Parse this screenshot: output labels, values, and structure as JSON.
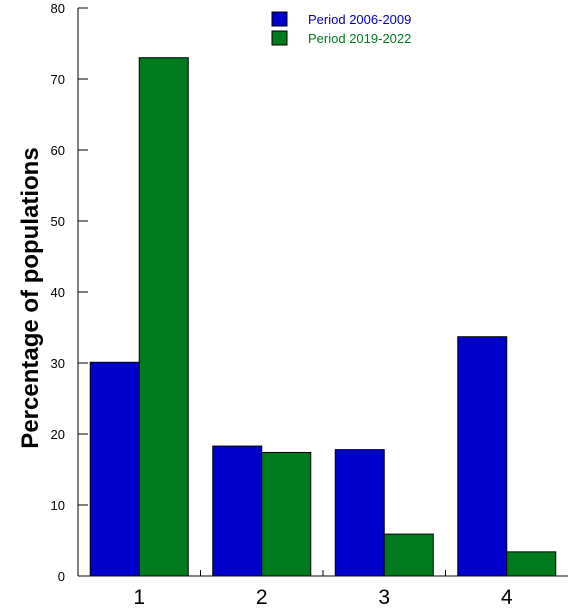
{
  "chart_data": {
    "type": "bar",
    "title": "",
    "xlabel": "",
    "ylabel": "Percentage of populations",
    "ylim": [
      0,
      80
    ],
    "yticks": [
      0,
      10,
      20,
      30,
      40,
      50,
      60,
      70,
      80
    ],
    "categories": [
      "1",
      "2",
      "3",
      "4"
    ],
    "series": [
      {
        "name": "Period 2006-2009",
        "color": "#0000cc",
        "values": [
          30.1,
          18.3,
          17.8,
          33.7
        ]
      },
      {
        "name": "Period 2019-2022",
        "color": "#007a1e",
        "values": [
          73.0,
          17.4,
          5.9,
          3.4
        ]
      }
    ],
    "legend_position": "top-right",
    "grid": false
  }
}
